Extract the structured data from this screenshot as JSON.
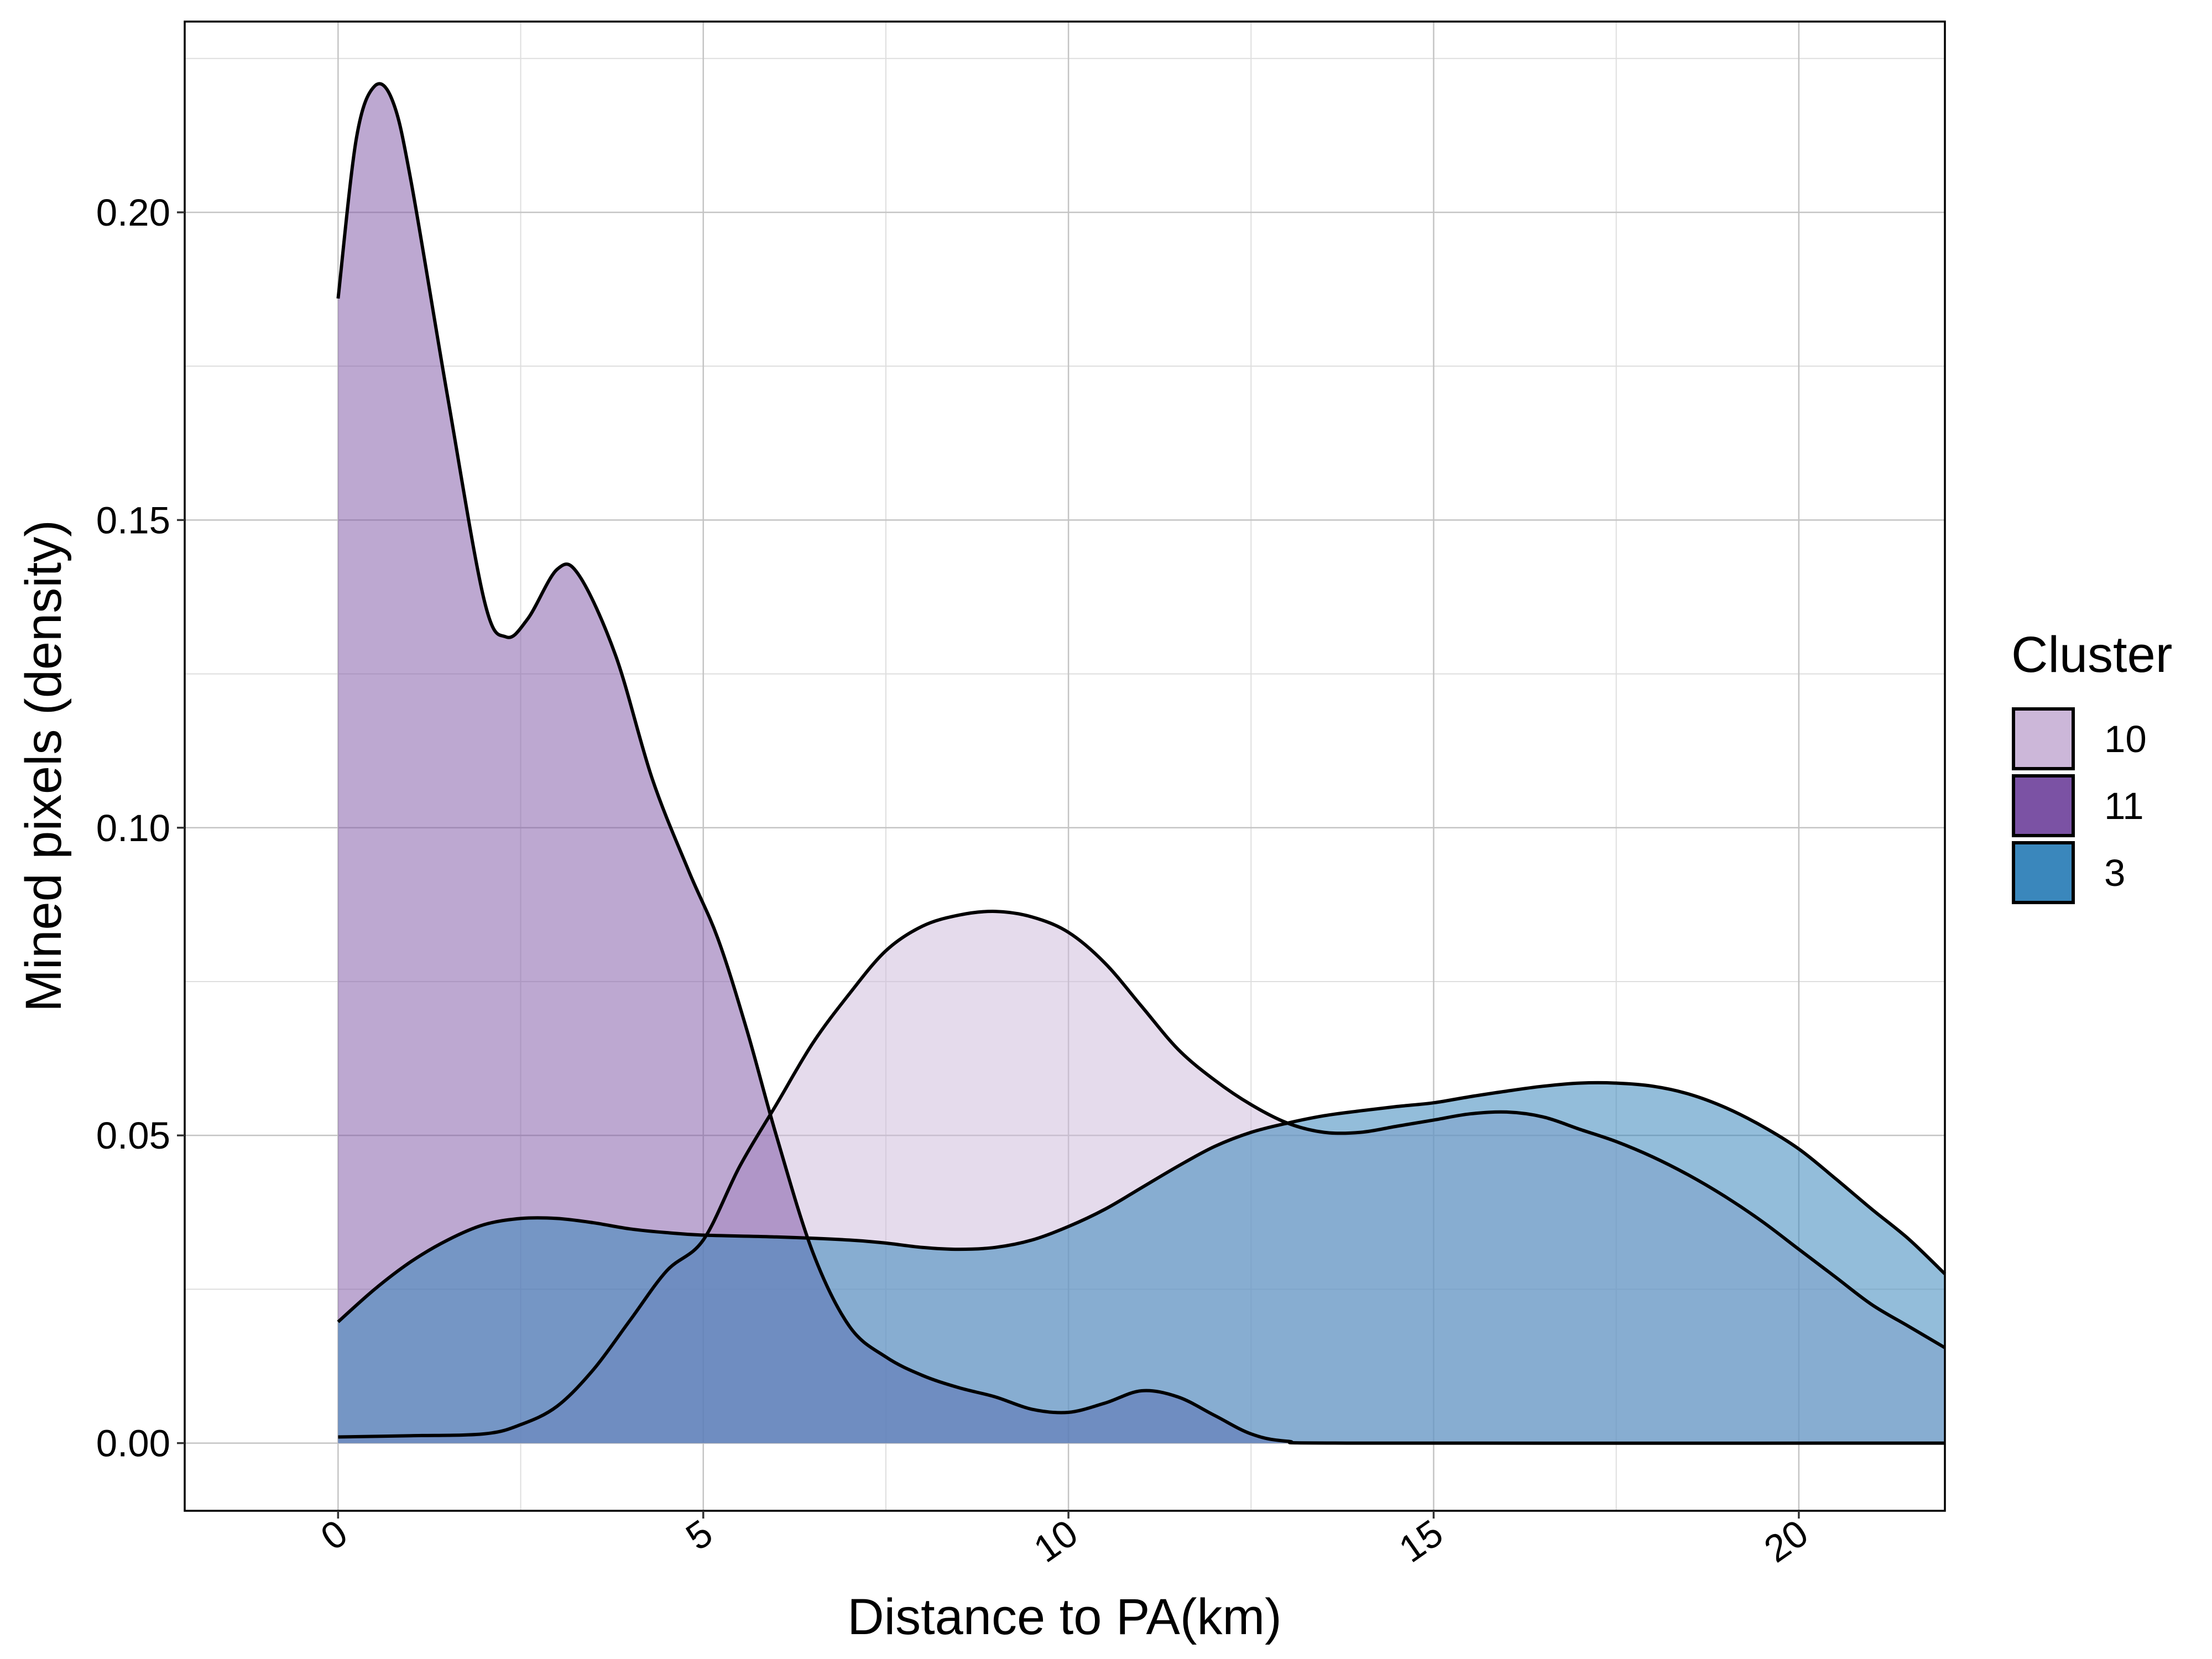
{
  "chart_data": {
    "type": "area",
    "subtype": "density",
    "title": "",
    "xlabel": "Distance to PA(km)",
    "ylabel": "Mined pixels (density)",
    "xlim": [
      -2.1,
      22
    ],
    "ylim": [
      -0.011,
      0.231
    ],
    "x_ticks": [
      0,
      5,
      10,
      15,
      20
    ],
    "x_tick_labels": [
      "0",
      "5",
      "10",
      "15",
      "20"
    ],
    "x_tick_rotation_deg": 35,
    "y_ticks": [
      0,
      0.05,
      0.1,
      0.15,
      0.2
    ],
    "y_tick_labels": [
      "0.00",
      "0.05",
      "0.10",
      "0.15",
      "0.20"
    ],
    "grid": true,
    "legend": {
      "title": "Cluster",
      "placement": "right",
      "entries": [
        "10",
        "11",
        "3"
      ]
    },
    "series": [
      {
        "name": "10",
        "color": "#ccb7d9",
        "opacity": 0.5,
        "points": [
          [
            0,
            0.001
          ],
          [
            1,
            0.0012
          ],
          [
            2,
            0.0015
          ],
          [
            2.5,
            0.003
          ],
          [
            3,
            0.006
          ],
          [
            3.5,
            0.012
          ],
          [
            4,
            0.02
          ],
          [
            4.5,
            0.028
          ],
          [
            5,
            0.033
          ],
          [
            5.5,
            0.045
          ],
          [
            6,
            0.055
          ],
          [
            6.5,
            0.065
          ],
          [
            7,
            0.073
          ],
          [
            7.5,
            0.08
          ],
          [
            8,
            0.084
          ],
          [
            8.5,
            0.0858
          ],
          [
            9,
            0.0864
          ],
          [
            9.5,
            0.0855
          ],
          [
            10,
            0.083
          ],
          [
            10.5,
            0.078
          ],
          [
            11,
            0.071
          ],
          [
            11.5,
            0.064
          ],
          [
            12,
            0.059
          ],
          [
            12.5,
            0.055
          ],
          [
            13,
            0.052
          ],
          [
            13.5,
            0.0505
          ],
          [
            14,
            0.0505
          ],
          [
            14.5,
            0.0515
          ],
          [
            15,
            0.0525
          ],
          [
            15.5,
            0.0535
          ],
          [
            16,
            0.0538
          ],
          [
            16.5,
            0.053
          ],
          [
            17,
            0.051
          ],
          [
            17.5,
            0.049
          ],
          [
            18,
            0.0465
          ],
          [
            18.5,
            0.0435
          ],
          [
            19,
            0.04
          ],
          [
            19.5,
            0.036
          ],
          [
            20,
            0.0315
          ],
          [
            20.5,
            0.027
          ],
          [
            21,
            0.0225
          ],
          [
            21.5,
            0.019
          ],
          [
            22,
            0.0155
          ]
        ]
      },
      {
        "name": "11",
        "color": "#7b52a4",
        "opacity": 0.5,
        "points": [
          [
            0,
            0.186
          ],
          [
            0.25,
            0.212
          ],
          [
            0.5,
            0.2205
          ],
          [
            0.75,
            0.218
          ],
          [
            1,
            0.205
          ],
          [
            1.5,
            0.17
          ],
          [
            2,
            0.137
          ],
          [
            2.3,
            0.131
          ],
          [
            2.6,
            0.134
          ],
          [
            3,
            0.142
          ],
          [
            3.3,
            0.141
          ],
          [
            3.8,
            0.128
          ],
          [
            4.3,
            0.108
          ],
          [
            4.8,
            0.093
          ],
          [
            5.2,
            0.082
          ],
          [
            5.6,
            0.067
          ],
          [
            6,
            0.05
          ],
          [
            6.5,
            0.031
          ],
          [
            7,
            0.019
          ],
          [
            7.5,
            0.014
          ],
          [
            8,
            0.011
          ],
          [
            8.5,
            0.009
          ],
          [
            9,
            0.0075
          ],
          [
            9.5,
            0.0055
          ],
          [
            10,
            0.005
          ],
          [
            10.5,
            0.0065
          ],
          [
            11,
            0.0085
          ],
          [
            11.5,
            0.0075
          ],
          [
            12,
            0.0045
          ],
          [
            12.5,
            0.0015
          ],
          [
            13,
            0.0003
          ],
          [
            14,
            0
          ],
          [
            22,
            0
          ]
        ]
      },
      {
        "name": "3",
        "color": "#3a87bc",
        "opacity": 0.55,
        "points": [
          [
            0,
            0.0197
          ],
          [
            0.5,
            0.025
          ],
          [
            1,
            0.0295
          ],
          [
            1.5,
            0.033
          ],
          [
            2,
            0.0355
          ],
          [
            2.5,
            0.0365
          ],
          [
            3,
            0.0365
          ],
          [
            3.5,
            0.0358
          ],
          [
            4,
            0.0348
          ],
          [
            4.5,
            0.0342
          ],
          [
            5,
            0.0338
          ],
          [
            6,
            0.0335
          ],
          [
            7,
            0.033
          ],
          [
            7.5,
            0.0325
          ],
          [
            8,
            0.0318
          ],
          [
            8.5,
            0.0315
          ],
          [
            9,
            0.0318
          ],
          [
            9.5,
            0.033
          ],
          [
            10,
            0.0352
          ],
          [
            10.5,
            0.038
          ],
          [
            11,
            0.0415
          ],
          [
            11.5,
            0.045
          ],
          [
            12,
            0.0482
          ],
          [
            12.5,
            0.0505
          ],
          [
            13,
            0.052
          ],
          [
            13.5,
            0.0532
          ],
          [
            14,
            0.054
          ],
          [
            14.5,
            0.0547
          ],
          [
            15,
            0.0553
          ],
          [
            15.5,
            0.0563
          ],
          [
            16,
            0.0572
          ],
          [
            16.5,
            0.058
          ],
          [
            17,
            0.0585
          ],
          [
            17.5,
            0.0585
          ],
          [
            18,
            0.058
          ],
          [
            18.5,
            0.0567
          ],
          [
            19,
            0.0545
          ],
          [
            19.5,
            0.0515
          ],
          [
            20,
            0.0478
          ],
          [
            20.5,
            0.043
          ],
          [
            21,
            0.038
          ],
          [
            21.5,
            0.0332
          ],
          [
            22,
            0.0275
          ]
        ]
      }
    ]
  }
}
